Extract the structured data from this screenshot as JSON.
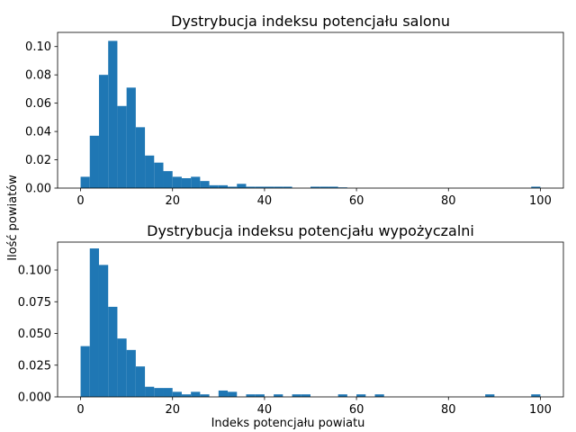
{
  "figure": {
    "ylabel": "Ilość powiatów",
    "xlabel": "Indeks potencjału powiatu"
  },
  "chart_data": [
    {
      "type": "bar",
      "title": "Dystrybucja indeksu potencjału salonu",
      "xlim": [
        -5,
        105
      ],
      "ylim": [
        0,
        0.11
      ],
      "xticks": [
        0,
        20,
        40,
        60,
        80,
        100
      ],
      "yticks": [
        "0.00",
        "0.02",
        "0.04",
        "0.06",
        "0.08",
        "0.10"
      ],
      "bin_width": 2,
      "bin_starts": [
        0,
        2,
        4,
        6,
        8,
        10,
        12,
        14,
        16,
        18,
        20,
        22,
        24,
        26,
        28,
        30,
        32,
        34,
        36,
        38,
        40,
        42,
        44,
        46,
        48,
        50,
        52,
        54,
        56,
        58,
        60,
        62,
        64,
        66,
        68,
        70,
        72,
        74,
        76,
        78,
        80,
        82,
        84,
        86,
        88,
        90,
        92,
        94,
        96,
        98
      ],
      "values": [
        0.008,
        0.037,
        0.08,
        0.104,
        0.058,
        0.071,
        0.043,
        0.023,
        0.018,
        0.012,
        0.008,
        0.007,
        0.008,
        0.005,
        0.002,
        0.002,
        0.001,
        0.003,
        0.001,
        0.001,
        0.001,
        0.001,
        0.001,
        0,
        0,
        0.001,
        0.001,
        0.001,
        0.0005,
        0,
        0,
        0,
        0,
        0,
        0,
        0,
        0,
        0,
        0,
        0,
        0,
        0,
        0,
        0,
        0,
        0,
        0,
        0,
        0,
        0.001
      ],
      "color": "#1f77b4"
    },
    {
      "type": "bar",
      "title": "Dystrybucja indeksu potencjału wypożyczalni",
      "xlim": [
        -5,
        105
      ],
      "ylim": [
        0,
        0.122
      ],
      "xticks": [
        0,
        20,
        40,
        60,
        80,
        100
      ],
      "yticks": [
        "0.000",
        "0.025",
        "0.050",
        "0.075",
        "0.100"
      ],
      "bin_width": 2,
      "bin_starts": [
        0,
        2,
        4,
        6,
        8,
        10,
        12,
        14,
        16,
        18,
        20,
        22,
        24,
        26,
        28,
        30,
        32,
        34,
        36,
        38,
        40,
        42,
        44,
        46,
        48,
        50,
        52,
        54,
        56,
        58,
        60,
        62,
        64,
        66,
        68,
        70,
        72,
        74,
        76,
        78,
        80,
        82,
        84,
        86,
        88,
        90,
        92,
        94,
        96,
        98
      ],
      "values": [
        0.04,
        0.117,
        0.104,
        0.071,
        0.046,
        0.037,
        0.024,
        0.008,
        0.007,
        0.007,
        0.004,
        0.002,
        0.004,
        0.002,
        0,
        0.005,
        0.004,
        0,
        0.002,
        0.002,
        0,
        0.002,
        0,
        0.002,
        0.002,
        0,
        0,
        0,
        0.002,
        0,
        0.002,
        0,
        0.002,
        0,
        0,
        0,
        0,
        0,
        0,
        0,
        0,
        0,
        0,
        0,
        0.002,
        0,
        0,
        0,
        0,
        0.002
      ],
      "color": "#1f77b4"
    }
  ]
}
